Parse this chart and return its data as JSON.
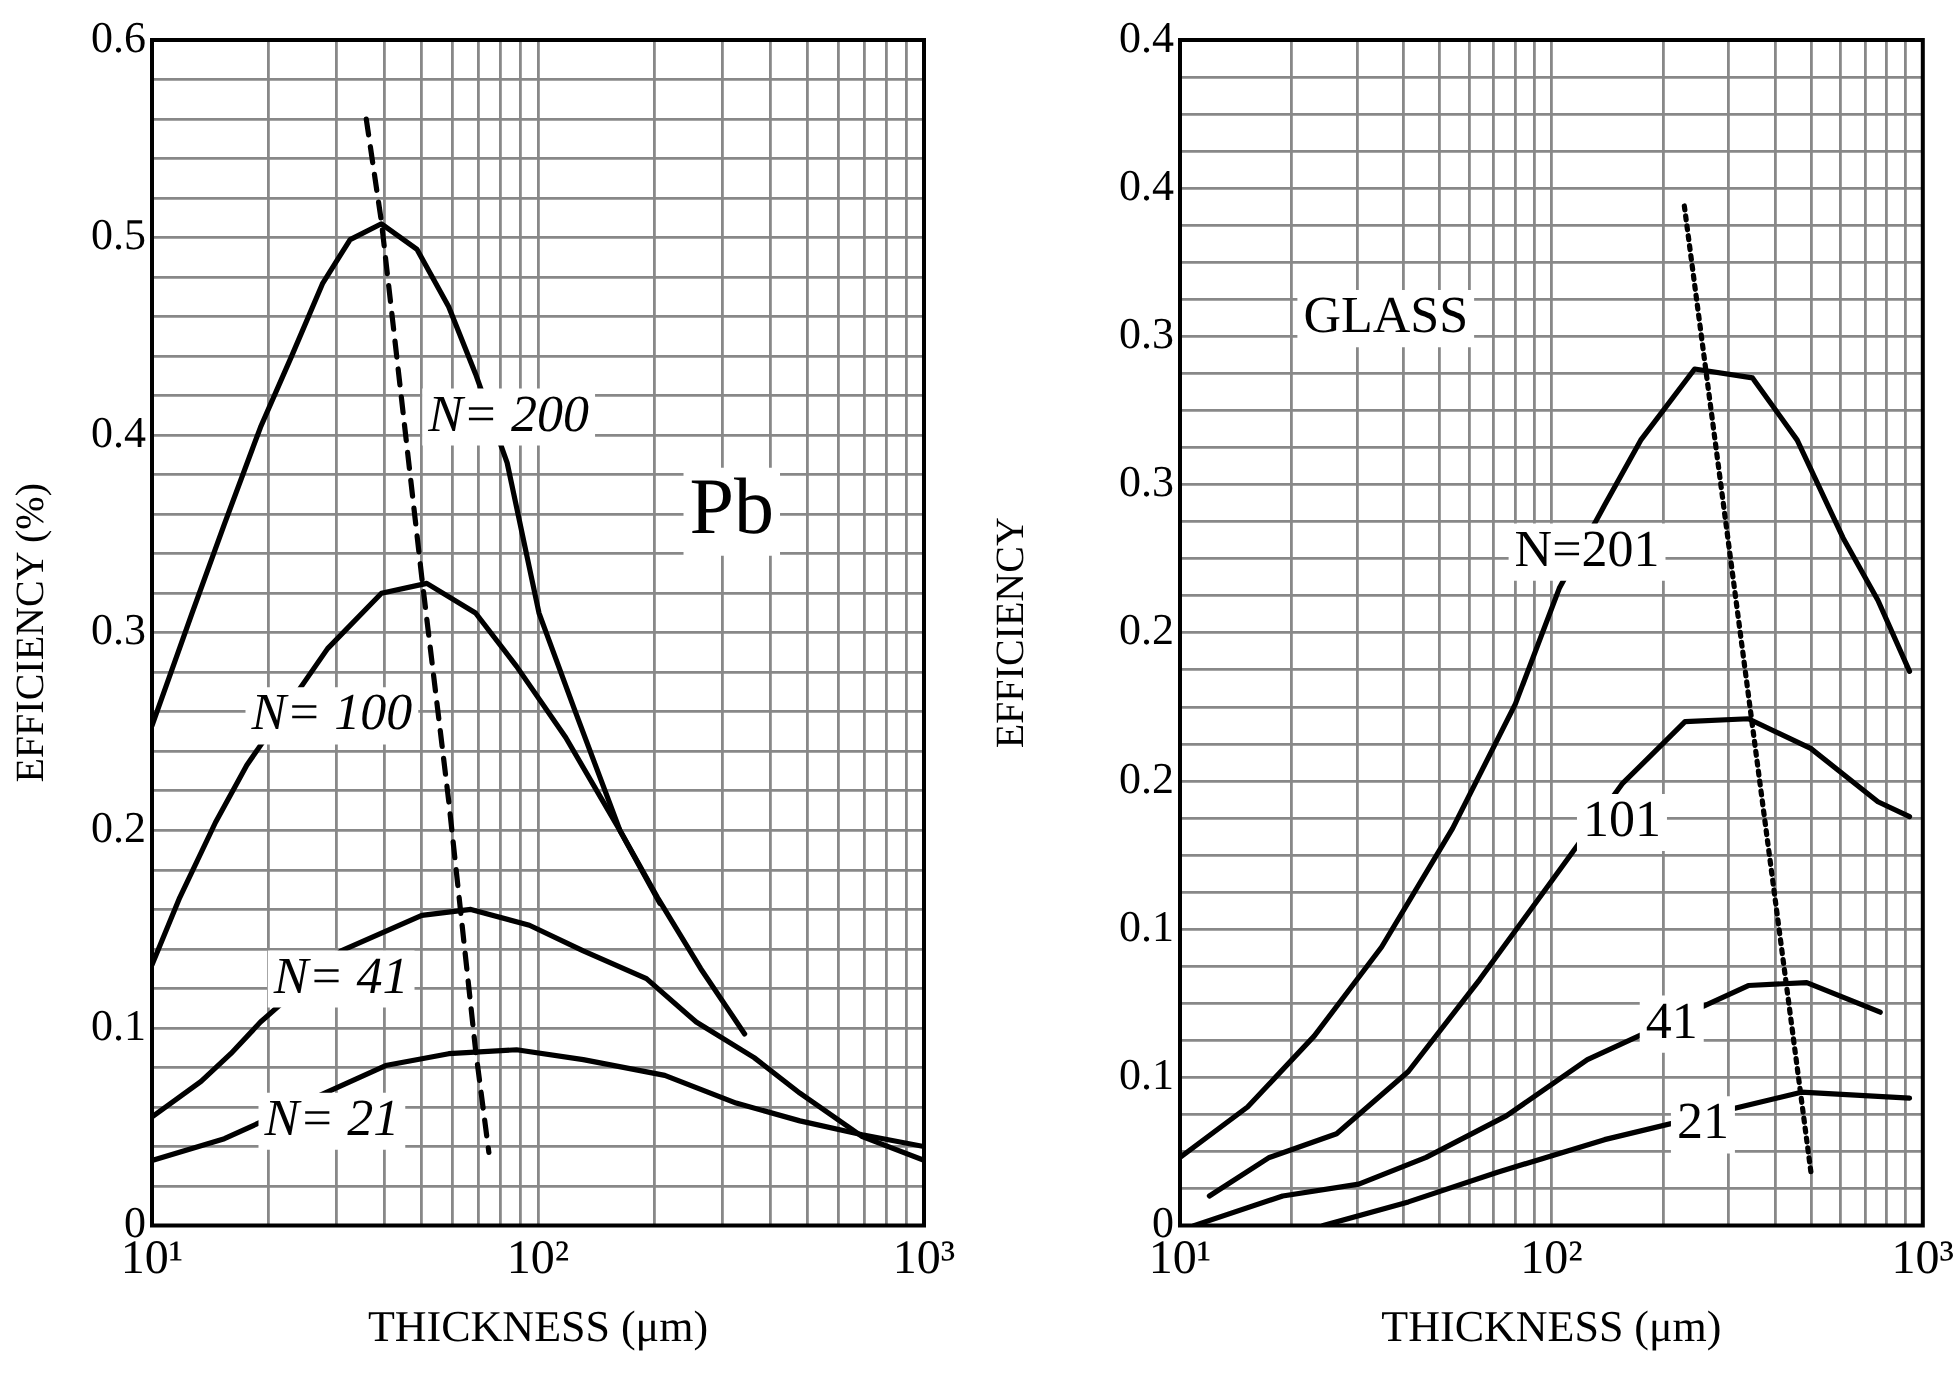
{
  "chart_data": [
    {
      "type": "line",
      "xlabel": "THICKNESS (μm)",
      "ylabel": "EFFICIENCY (%)",
      "log": "x",
      "grid": true,
      "legend": false,
      "marker": "none",
      "xlim": [
        10,
        1000
      ],
      "ylim": [
        0,
        0.6
      ],
      "xticks": [
        {
          "value": 10,
          "label": "10¹"
        },
        {
          "value": 20,
          "label": null
        },
        {
          "value": 30,
          "label": null
        },
        {
          "value": 40,
          "label": null
        },
        {
          "value": 50,
          "label": null
        },
        {
          "value": 60,
          "label": null
        },
        {
          "value": 70,
          "label": null
        },
        {
          "value": 80,
          "label": null
        },
        {
          "value": 90,
          "label": null
        },
        {
          "value": 100,
          "label": "10²"
        },
        {
          "value": 200,
          "label": null
        },
        {
          "value": 300,
          "label": null
        },
        {
          "value": 400,
          "label": null
        },
        {
          "value": 500,
          "label": null
        },
        {
          "value": 600,
          "label": null
        },
        {
          "value": 700,
          "label": null
        },
        {
          "value": 800,
          "label": null
        },
        {
          "value": 900,
          "label": null
        },
        {
          "value": 1000,
          "label": "10³"
        }
      ],
      "yticks": [
        0,
        {
          "value": 0.02,
          "label": null
        },
        {
          "value": 0.04,
          "label": null
        },
        {
          "value": 0.06,
          "label": null
        },
        {
          "value": 0.08,
          "label": null
        },
        0.1,
        {
          "value": 0.12,
          "label": null
        },
        {
          "value": 0.14,
          "label": null
        },
        {
          "value": 0.16,
          "label": null
        },
        {
          "value": 0.18,
          "label": null
        },
        0.2,
        {
          "value": 0.22,
          "label": null
        },
        {
          "value": 0.24,
          "label": null
        },
        {
          "value": 0.26,
          "label": null
        },
        {
          "value": 0.28,
          "label": null
        },
        0.3,
        {
          "value": 0.32,
          "label": null
        },
        {
          "value": 0.34,
          "label": null
        },
        {
          "value": 0.36,
          "label": null
        },
        {
          "value": 0.38,
          "label": null
        },
        0.4,
        {
          "value": 0.42,
          "label": null
        },
        {
          "value": 0.44,
          "label": null
        },
        {
          "value": 0.46,
          "label": null
        },
        {
          "value": 0.48,
          "label": null
        },
        0.5,
        {
          "value": 0.52,
          "label": null
        },
        {
          "value": 0.54,
          "label": null
        },
        {
          "value": 0.56,
          "label": null
        },
        {
          "value": 0.58,
          "label": null
        },
        0.6
      ],
      "series": [
        {
          "color": "#000000",
          "x": [
            10,
            12.7,
            15.4,
            19.1,
            23,
            27.7,
            32.6,
            39.3,
            48.6,
            58.7,
            68.9,
            83.2,
            100.6,
            125,
            163,
            207
          ],
          "values": [
            0.253,
            0.31,
            0.355,
            0.404,
            0.44,
            0.477,
            0.499,
            0.507,
            0.494,
            0.465,
            0.431,
            0.386,
            0.31,
            0.26,
            0.2,
            0.163
          ]
        },
        {
          "color": "#000000",
          "x": [
            10,
            11.8,
            14.6,
            17.6,
            28.5,
            39.3,
            51.5,
            68.9,
            88,
            118,
            163,
            204,
            264,
            343
          ],
          "values": [
            0.132,
            0.166,
            0.204,
            0.233,
            0.292,
            0.32,
            0.325,
            0.31,
            0.283,
            0.247,
            0.2,
            0.166,
            0.13,
            0.097
          ]
        },
        {
          "color": "#000000",
          "x": [
            10,
            13.4,
            16,
            19.1,
            30.9,
            50,
            67,
            95,
            131,
            191,
            257,
            363,
            477,
            692,
            1000
          ],
          "values": [
            0.055,
            0.073,
            0.087,
            0.103,
            0.139,
            0.157,
            0.16,
            0.152,
            0.139,
            0.125,
            0.103,
            0.085,
            0.067,
            0.045,
            0.033
          ]
        },
        {
          "color": "#000000",
          "x": [
            10,
            15.4,
            40.3,
            58.7,
            88,
            131,
            213,
            326,
            477,
            692,
            1000
          ],
          "values": [
            0.033,
            0.044,
            0.081,
            0.087,
            0.089,
            0.084,
            0.076,
            0.062,
            0.053,
            0.046,
            0.04
          ]
        },
        {
          "color": "#000000",
          "line_style": "dashed",
          "x": [
            35.9,
            39.3,
            50,
            58.7,
            68.9,
            74.6
          ],
          "values": [
            0.56,
            0.508,
            0.328,
            0.215,
            0.089,
            0.037
          ]
        }
      ],
      "annotations": [
        "N= 200",
        "N= 100",
        "N= 41",
        "N= 21",
        "Pb"
      ]
    },
    {
      "type": "line",
      "xlabel": "THICKNESS (μm)",
      "ylabel": "EFFICIENCY",
      "log": "x",
      "grid": true,
      "legend": false,
      "marker": "none",
      "xlim": [
        10,
        1000
      ],
      "ylim": [
        0,
        0.4
      ],
      "xticks": [
        {
          "value": 10,
          "label": "10¹"
        },
        {
          "value": 20,
          "label": null
        },
        {
          "value": 30,
          "label": null
        },
        {
          "value": 40,
          "label": null
        },
        {
          "value": 50,
          "label": null
        },
        {
          "value": 60,
          "label": null
        },
        {
          "value": 70,
          "label": null
        },
        {
          "value": 80,
          "label": null
        },
        {
          "value": 90,
          "label": null
        },
        {
          "value": 100,
          "label": "10²"
        },
        {
          "value": 200,
          "label": null
        },
        {
          "value": 300,
          "label": null
        },
        {
          "value": 400,
          "label": null
        },
        {
          "value": 500,
          "label": null
        },
        {
          "value": 600,
          "label": null
        },
        {
          "value": 700,
          "label": null
        },
        {
          "value": 800,
          "label": null
        },
        {
          "value": 900,
          "label": null
        },
        {
          "value": 1000,
          "label": "10³"
        }
      ],
      "yticks": [
        0,
        {
          "value": 0.0125,
          "label": null
        },
        {
          "value": 0.025,
          "label": null
        },
        {
          "value": 0.0375,
          "label": null
        },
        {
          "value": 0.05,
          "label": "0.1"
        },
        {
          "value": 0.0625,
          "label": null
        },
        {
          "value": 0.075,
          "label": null
        },
        {
          "value": 0.0875,
          "label": null
        },
        0.1,
        {
          "value": 0.1125,
          "label": null
        },
        {
          "value": 0.125,
          "label": null
        },
        {
          "value": 0.1375,
          "label": null
        },
        {
          "value": 0.15,
          "label": "0.2"
        },
        {
          "value": 0.1625,
          "label": null
        },
        {
          "value": 0.175,
          "label": null
        },
        {
          "value": 0.1875,
          "label": null
        },
        0.2,
        {
          "value": 0.2125,
          "label": null
        },
        {
          "value": 0.225,
          "label": null
        },
        {
          "value": 0.2375,
          "label": null
        },
        {
          "value": 0.25,
          "label": "0.3"
        },
        {
          "value": 0.2625,
          "label": null
        },
        {
          "value": 0.275,
          "label": null
        },
        {
          "value": 0.2875,
          "label": null
        },
        0.3,
        {
          "value": 0.3125,
          "label": null
        },
        {
          "value": 0.325,
          "label": null
        },
        {
          "value": 0.3375,
          "label": null
        },
        {
          "value": 0.35,
          "label": "0.4"
        },
        {
          "value": 0.3625,
          "label": null
        },
        {
          "value": 0.375,
          "label": null
        },
        {
          "value": 0.3875,
          "label": null
        },
        0.4
      ],
      "series": [
        {
          "color": "#000000",
          "x": [
            10,
            15.2,
            23,
            34.9,
            54.2,
            80,
            105,
            139,
            174,
            243,
            348,
            459,
            610,
            757,
            921
          ],
          "values": [
            0.023,
            0.04,
            0.064,
            0.094,
            0.134,
            0.176,
            0.215,
            0.243,
            0.265,
            0.289,
            0.286,
            0.265,
            0.232,
            0.211,
            0.187
          ]
        },
        {
          "color": "#000000",
          "x": [
            12,
            17.4,
            26.4,
            41.2,
            64.1,
            99.8,
            155,
            229,
            339,
            499,
            757,
            921
          ],
          "values": [
            0.01,
            0.023,
            0.031,
            0.052,
            0.083,
            0.116,
            0.149,
            0.17,
            0.171,
            0.161,
            0.143,
            0.138
          ]
        },
        {
          "color": "#000000",
          "x": [
            10.9,
            18.9,
            30.3,
            46,
            75.6,
            125,
            339,
            487,
            768
          ],
          "values": [
            0,
            0.01,
            0.014,
            0.023,
            0.037,
            0.056,
            0.081,
            0.082,
            0.072
          ]
        },
        {
          "color": "#000000",
          "x": [
            24.3,
            41.2,
            71.6,
            139,
            471,
            921
          ],
          "values": [
            0,
            0.008,
            0.018,
            0.029,
            0.045,
            0.043
          ]
        },
        {
          "color": "#000000",
          "line_style": "dotted",
          "x": [
            228,
            501
          ],
          "values": [
            0.344,
            0.017
          ]
        }
      ],
      "annotations": [
        "GLASS",
        "N=201",
        "101",
        "41",
        "21"
      ]
    }
  ]
}
